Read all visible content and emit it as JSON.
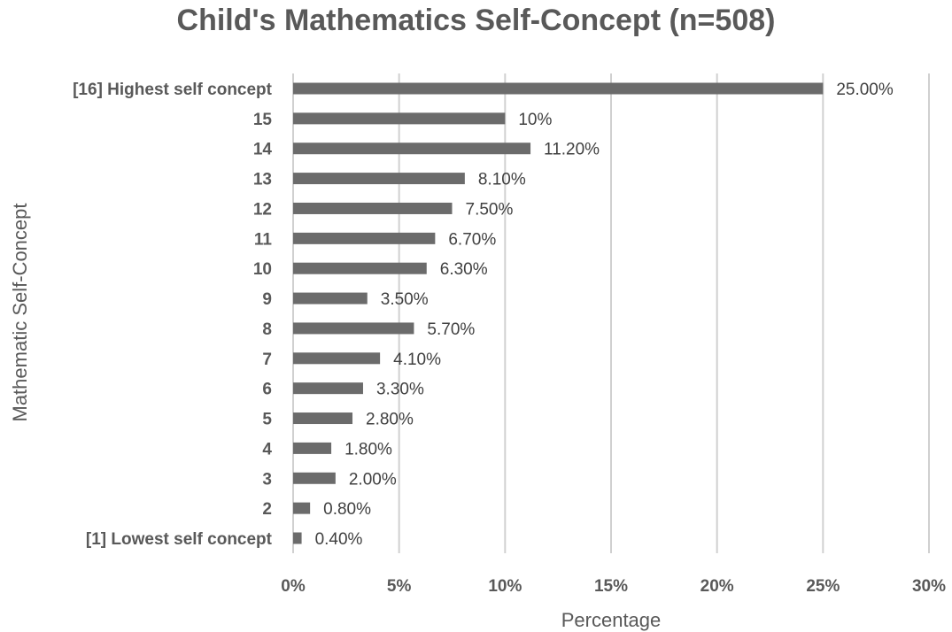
{
  "chart_data": {
    "type": "bar",
    "orientation": "horizontal",
    "title": "Child's Mathematics Self-Concept (n=508)",
    "xlabel": "Percentage",
    "ylabel": "Mathematic Self-Concept",
    "xlim": [
      0,
      30
    ],
    "x_ticks": [
      "0%",
      "5%",
      "10%",
      "15%",
      "20%",
      "25%",
      "30%"
    ],
    "x_tick_values": [
      0,
      5,
      10,
      15,
      20,
      25,
      30
    ],
    "grid": true,
    "bar_color": "#6b6b6b",
    "categories": [
      "[16] Highest self concept",
      "15",
      "14",
      "13",
      "12",
      "11",
      "10",
      "9",
      "8",
      "7",
      "6",
      "5",
      "4",
      "3",
      "2",
      "[1] Lowest self concept"
    ],
    "values": [
      25.0,
      10,
      11.2,
      8.1,
      7.5,
      6.7,
      6.3,
      3.5,
      5.7,
      4.1,
      3.3,
      2.8,
      1.8,
      2.0,
      0.8,
      0.4
    ],
    "data_labels": [
      "25.00%",
      "10%",
      "11.20%",
      "8.10%",
      "7.50%",
      "6.70%",
      "6.30%",
      "3.50%",
      "5.70%",
      "4.10%",
      "3.30%",
      "2.80%",
      "1.80%",
      "2.00%",
      "0.80%",
      "0.40%"
    ]
  }
}
